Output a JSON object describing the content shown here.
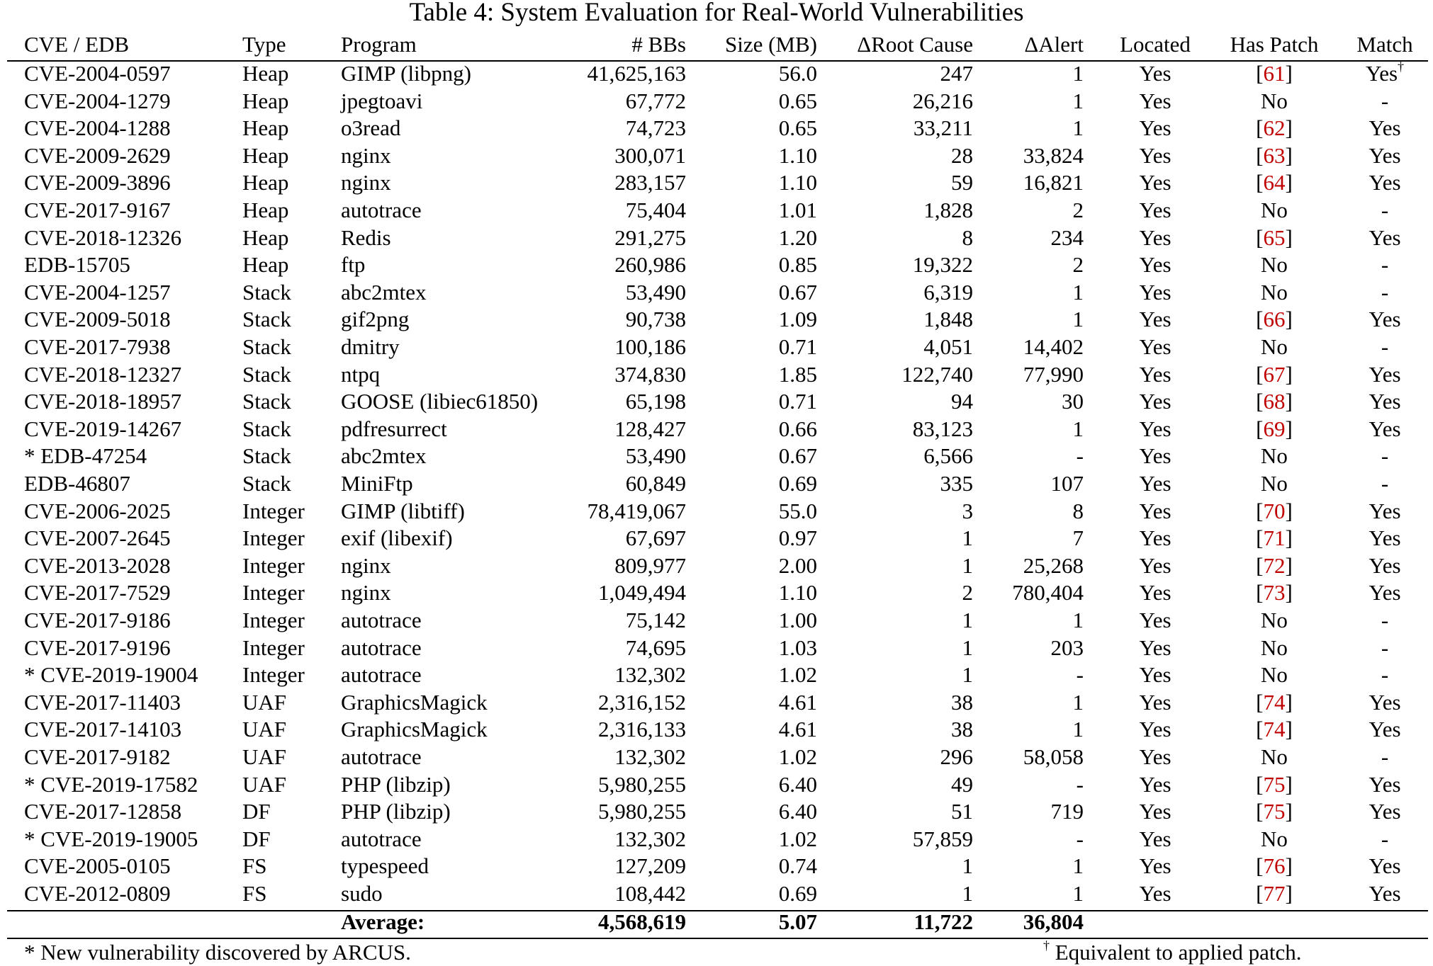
{
  "title": "Table 4: System Evaluation for Real-World Vulnerabilities",
  "columns": [
    "CVE / EDB",
    "Type",
    "Program",
    "# BBs",
    "Size (MB)",
    "ΔRoot Cause",
    "ΔAlert",
    "Located",
    "Has Patch",
    "Match"
  ],
  "rows": [
    [
      "CVE-2004-0597",
      "Heap",
      "GIMP (libpng)",
      "41,625,163",
      "56.0",
      "247",
      "1",
      "Yes",
      "[61]",
      "Yes"
    ],
    [
      "CVE-2004-1279",
      "Heap",
      "jpegtoavi",
      "67,772",
      "0.65",
      "26,216",
      "1",
      "Yes",
      "No",
      "-"
    ],
    [
      "CVE-2004-1288",
      "Heap",
      "o3read",
      "74,723",
      "0.65",
      "33,211",
      "1",
      "Yes",
      "[62]",
      "Yes"
    ],
    [
      "CVE-2009-2629",
      "Heap",
      "nginx",
      "300,071",
      "1.10",
      "28",
      "33,824",
      "Yes",
      "[63]",
      "Yes"
    ],
    [
      "CVE-2009-3896",
      "Heap",
      "nginx",
      "283,157",
      "1.10",
      "59",
      "16,821",
      "Yes",
      "[64]",
      "Yes"
    ],
    [
      "CVE-2017-9167",
      "Heap",
      "autotrace",
      "75,404",
      "1.01",
      "1,828",
      "2",
      "Yes",
      "No",
      "-"
    ],
    [
      "CVE-2018-12326",
      "Heap",
      "Redis",
      "291,275",
      "1.20",
      "8",
      "234",
      "Yes",
      "[65]",
      "Yes"
    ],
    [
      "EDB-15705",
      "Heap",
      "ftp",
      "260,986",
      "0.85",
      "19,322",
      "2",
      "Yes",
      "No",
      "-"
    ],
    [
      "CVE-2004-1257",
      "Stack",
      "abc2mtex",
      "53,490",
      "0.67",
      "6,319",
      "1",
      "Yes",
      "No",
      "-"
    ],
    [
      "CVE-2009-5018",
      "Stack",
      "gif2png",
      "90,738",
      "1.09",
      "1,848",
      "1",
      "Yes",
      "[66]",
      "Yes"
    ],
    [
      "CVE-2017-7938",
      "Stack",
      "dmitry",
      "100,186",
      "0.71",
      "4,051",
      "14,402",
      "Yes",
      "No",
      "-"
    ],
    [
      "CVE-2018-12327",
      "Stack",
      "ntpq",
      "374,830",
      "1.85",
      "122,740",
      "77,990",
      "Yes",
      "[67]",
      "Yes"
    ],
    [
      "CVE-2018-18957",
      "Stack",
      "GOOSE (libiec61850)",
      "65,198",
      "0.71",
      "94",
      "30",
      "Yes",
      "[68]",
      "Yes"
    ],
    [
      "CVE-2019-14267",
      "Stack",
      "pdfresurrect",
      "128,427",
      "0.66",
      "83,123",
      "1",
      "Yes",
      "[69]",
      "Yes"
    ],
    [
      "* EDB-47254",
      "Stack",
      "abc2mtex",
      "53,490",
      "0.67",
      "6,566",
      "-",
      "Yes",
      "No",
      "-"
    ],
    [
      "EDB-46807",
      "Stack",
      "MiniFtp",
      "60,849",
      "0.69",
      "335",
      "107",
      "Yes",
      "No",
      "-"
    ],
    [
      "CVE-2006-2025",
      "Integer",
      "GIMP (libtiff)",
      "78,419,067",
      "55.0",
      "3",
      "8",
      "Yes",
      "[70]",
      "Yes"
    ],
    [
      "CVE-2007-2645",
      "Integer",
      "exif (libexif)",
      "67,697",
      "0.97",
      "1",
      "7",
      "Yes",
      "[71]",
      "Yes"
    ],
    [
      "CVE-2013-2028",
      "Integer",
      "nginx",
      "809,977",
      "2.00",
      "1",
      "25,268",
      "Yes",
      "[72]",
      "Yes"
    ],
    [
      "CVE-2017-7529",
      "Integer",
      "nginx",
      "1,049,494",
      "1.10",
      "2",
      "780,404",
      "Yes",
      "[73]",
      "Yes"
    ],
    [
      "CVE-2017-9186",
      "Integer",
      "autotrace",
      "75,142",
      "1.00",
      "1",
      "1",
      "Yes",
      "No",
      "-"
    ],
    [
      "CVE-2017-9196",
      "Integer",
      "autotrace",
      "74,695",
      "1.03",
      "1",
      "203",
      "Yes",
      "No",
      "-"
    ],
    [
      "* CVE-2019-19004",
      "Integer",
      "autotrace",
      "132,302",
      "1.02",
      "1",
      "-",
      "Yes",
      "No",
      "-"
    ],
    [
      "CVE-2017-11403",
      "UAF",
      "GraphicsMagick",
      "2,316,152",
      "4.61",
      "38",
      "1",
      "Yes",
      "[74]",
      "Yes"
    ],
    [
      "CVE-2017-14103",
      "UAF",
      "GraphicsMagick",
      "2,316,133",
      "4.61",
      "38",
      "1",
      "Yes",
      "[74]",
      "Yes"
    ],
    [
      "CVE-2017-9182",
      "UAF",
      "autotrace",
      "132,302",
      "1.02",
      "296",
      "58,058",
      "Yes",
      "No",
      "-"
    ],
    [
      "* CVE-2019-17582",
      "UAF",
      "PHP (libzip)",
      "5,980,255",
      "6.40",
      "49",
      "-",
      "Yes",
      "[75]",
      "Yes"
    ],
    [
      "CVE-2017-12858",
      "DF",
      "PHP (libzip)",
      "5,980,255",
      "6.40",
      "51",
      "719",
      "Yes",
      "[75]",
      "Yes"
    ],
    [
      "* CVE-2019-19005",
      "DF",
      "autotrace",
      "132,302",
      "1.02",
      "57,859",
      "-",
      "Yes",
      "No",
      "-"
    ],
    [
      "CVE-2005-0105",
      "FS",
      "typespeed",
      "127,209",
      "0.74",
      "1",
      "1",
      "Yes",
      "[76]",
      "Yes"
    ],
    [
      "CVE-2012-0809",
      "FS",
      "sudo",
      "108,442",
      "0.69",
      "1",
      "1",
      "Yes",
      "[77]",
      "Yes"
    ]
  ],
  "first_row_match_mark": "†",
  "average": {
    "label": "Average:",
    "bbs": "4,568,619",
    "size": "5.07",
    "root_cause": "11,722",
    "alert": "36,804"
  },
  "footnotes": {
    "new_vuln": "* New vulnerability discovered by ARCUS.",
    "dagger_mark": "†",
    "dagger_text": " Equivalent to applied patch."
  },
  "colors": {
    "citation": "#c00000",
    "text": "#000000"
  }
}
